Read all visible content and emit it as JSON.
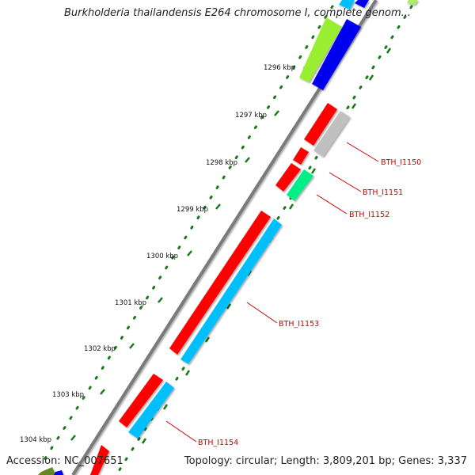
{
  "title": "Burkholderia thailandensis E264 chromosome I, complete genom...",
  "accession": "Accession: NC_007651",
  "topology": "Topology: circular; Length: 3,809,201 bp; Genes: 3,337",
  "ticks": [
    "1296 kbp",
    "1297 kbp",
    "1298 kbp",
    "1299 kbp",
    "1300 kbp",
    "1301 kbp",
    "1302 kbp",
    "1303 kbp",
    "1304 kbp"
  ],
  "gene_labels": [
    "BTH_I1150",
    "BTH_I1151",
    "BTH_I1152",
    "BTH_I1153",
    "BTH_I1154"
  ],
  "colors": {
    "backbone": "#808080",
    "forward_cds": "#ff0000",
    "reverse_cds": "#00bfff",
    "grey_feature": "#c0c0c0",
    "green_feature": "#00ee88",
    "yellowgreen_feature": "#99ee33",
    "blue_feature": "#0000ee",
    "dark_green_feature": "#668822",
    "dots": "#1a7a1a",
    "label": "#cc0000"
  }
}
